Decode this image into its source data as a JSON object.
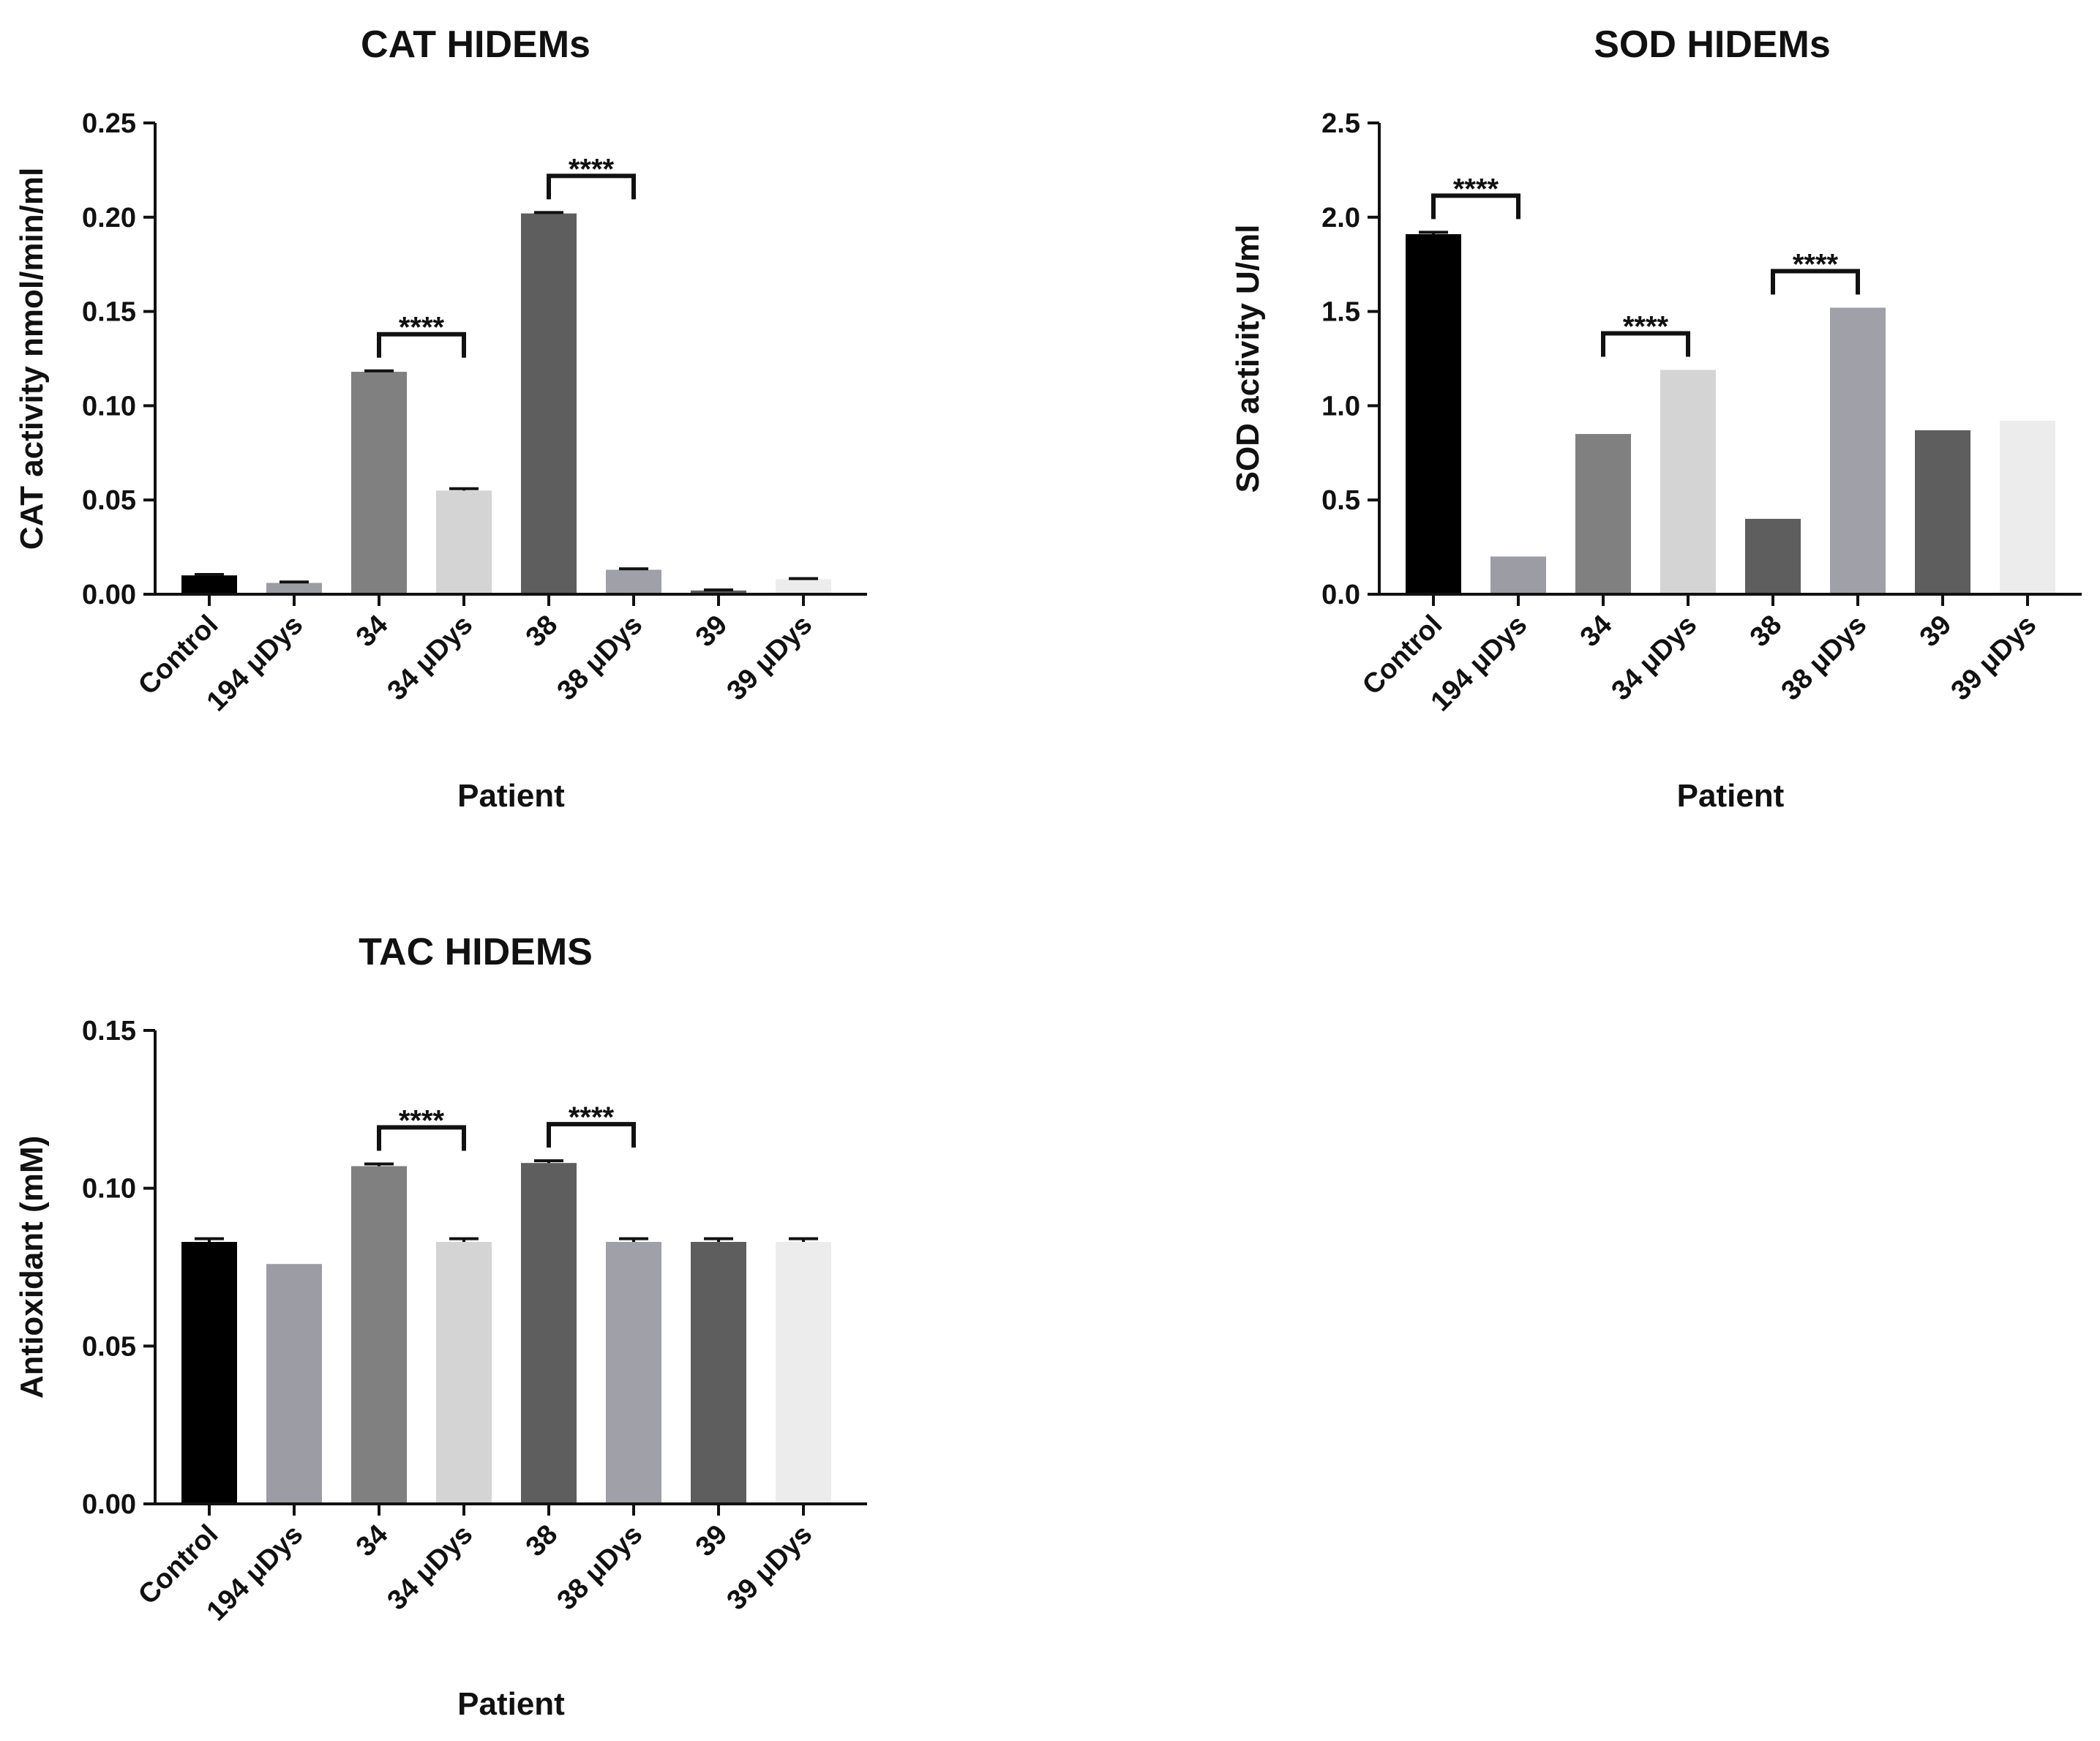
{
  "chart_data": [
    {
      "type": "bar",
      "title": "CAT HIDEMs",
      "xlabel": "Patient",
      "ylabel": "CAT activity nmol/min/ml",
      "ylim": [
        0,
        0.25
      ],
      "yticks": [
        "0.00",
        "0.05",
        "0.10",
        "0.15",
        "0.20",
        "0.25"
      ],
      "categories": [
        "Control",
        "194 μDys",
        "34",
        "34 μDys",
        "38",
        "38 μDys",
        "39",
        "39 μDys"
      ],
      "values": [
        0.01,
        0.006,
        0.118,
        0.055,
        0.202,
        0.013,
        0.002,
        0.008
      ],
      "errors": [
        0.0005,
        0.0005,
        0.0005,
        0.001,
        0.0005,
        0.0005,
        0.0003,
        0.0003
      ],
      "colors": [
        "#000000",
        "#9c9ca4",
        "#808080",
        "#d4d4d4",
        "#5e5e5e",
        "#a0a0a8",
        "#5e5e5e",
        "#ececec"
      ],
      "significance": [
        {
          "from": 2,
          "to": 3,
          "label": "****"
        },
        {
          "from": 4,
          "to": 5,
          "label": "****"
        }
      ]
    },
    {
      "type": "bar",
      "title": "SOD HIDEMs",
      "xlabel": "Patient",
      "ylabel": "SOD activity U/ml",
      "ylim": [
        0,
        2.5
      ],
      "yticks": [
        "0.0",
        "0.5",
        "1.0",
        "1.5",
        "2.0",
        "2.5"
      ],
      "categories": [
        "Control",
        "194 μDys",
        "34",
        "34 μDys",
        "38",
        "38 μDys",
        "39",
        "39 μDys"
      ],
      "values": [
        1.91,
        0.2,
        0.85,
        1.19,
        0.4,
        1.52,
        0.87,
        0.92
      ],
      "errors": [
        0.01,
        0,
        0,
        0,
        0,
        0,
        0,
        0
      ],
      "colors": [
        "#000000",
        "#9c9ca4",
        "#808080",
        "#d4d4d4",
        "#5e5e5e",
        "#a0a0a8",
        "#5e5e5e",
        "#ececec"
      ],
      "significance": [
        {
          "from": 0,
          "to": 1,
          "label": "****"
        },
        {
          "from": 2,
          "to": 3,
          "label": "****"
        },
        {
          "from": 4,
          "to": 5,
          "label": "****"
        }
      ]
    },
    {
      "type": "bar",
      "title": "TAC HIDEMS",
      "xlabel": "Patient",
      "ylabel": "Antioxidant (mM)",
      "ylim": [
        0,
        0.15
      ],
      "yticks": [
        "0.00",
        "0.05",
        "0.10",
        "0.15"
      ],
      "categories": [
        "Control",
        "194 μDys",
        "34",
        "34 μDys",
        "38",
        "38 μDys",
        "39",
        "39 μDys"
      ],
      "values": [
        0.083,
        0.076,
        0.107,
        0.083,
        0.108,
        0.083,
        0.083,
        0.083
      ],
      "errors": [
        0.001,
        0,
        0.0007,
        0.001,
        0.0007,
        0.001,
        0.001,
        0.001
      ],
      "colors": [
        "#000000",
        "#9c9ca4",
        "#808080",
        "#d4d4d4",
        "#5e5e5e",
        "#a0a0a8",
        "#5e5e5e",
        "#ececec"
      ],
      "significance": [
        {
          "from": 2,
          "to": 3,
          "label": "****"
        },
        {
          "from": 4,
          "to": 5,
          "label": "****"
        }
      ]
    }
  ]
}
